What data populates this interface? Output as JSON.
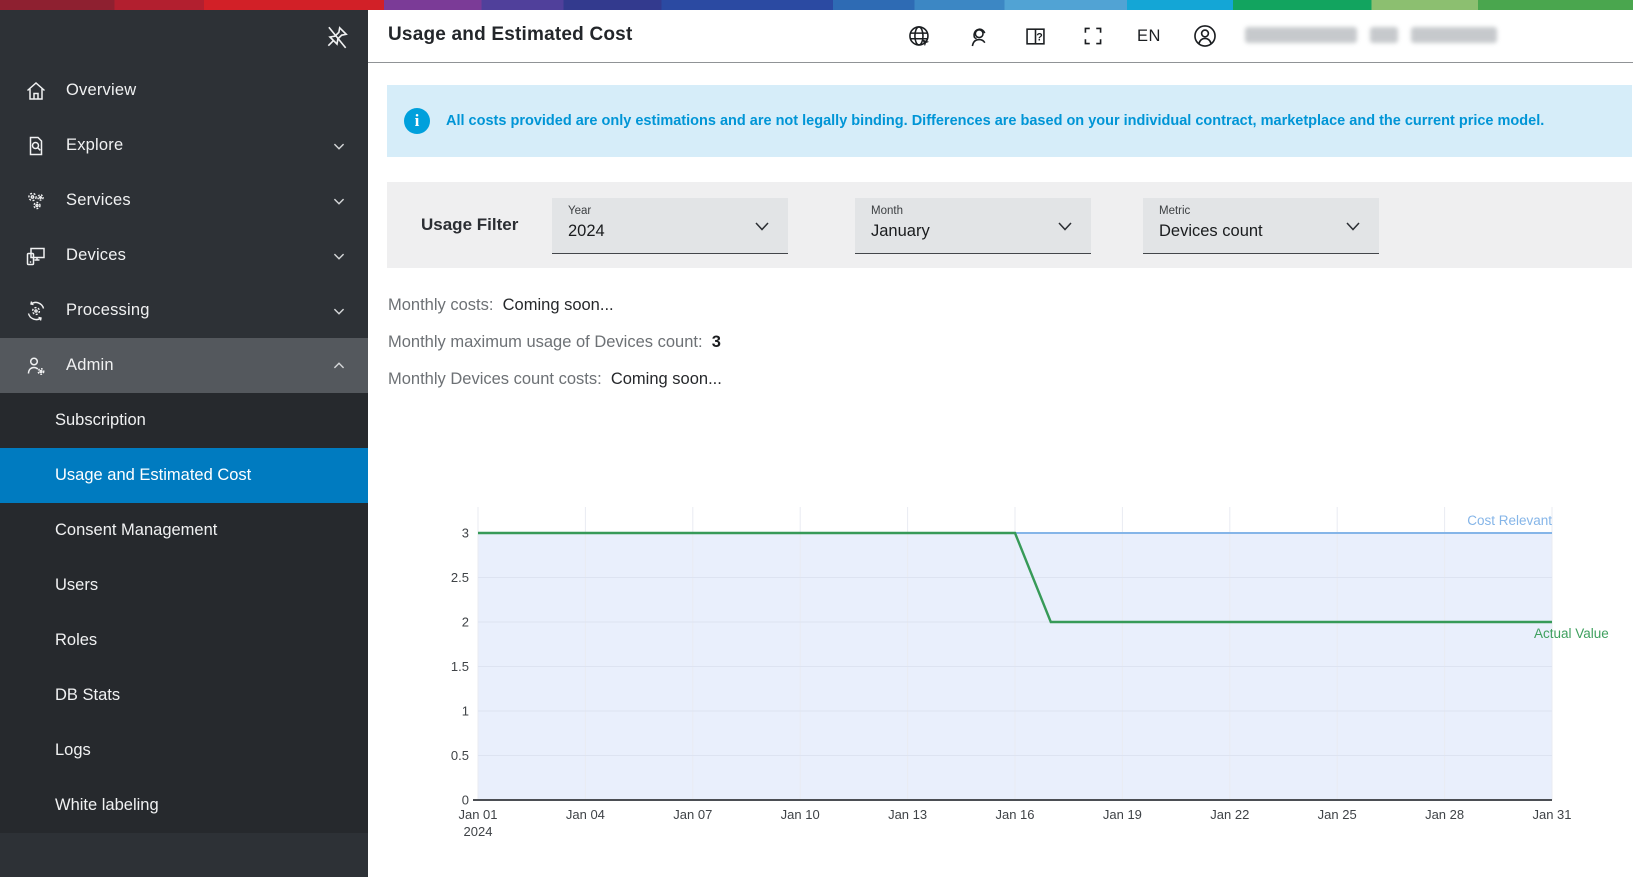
{
  "sidebar": {
    "pin_icon": "unpin",
    "items": [
      {
        "label": "Overview",
        "icon": "home",
        "expandable": false
      },
      {
        "label": "Explore",
        "icon": "document-search",
        "expandable": true
      },
      {
        "label": "Services",
        "icon": "gears",
        "expandable": true
      },
      {
        "label": "Devices",
        "icon": "devices",
        "expandable": true
      },
      {
        "label": "Processing",
        "icon": "gear-sync",
        "expandable": true
      },
      {
        "label": "Admin",
        "icon": "user-gear",
        "expandable": true,
        "expanded": true
      }
    ],
    "admin_subitems": [
      {
        "label": "Subscription"
      },
      {
        "label": "Usage and Estimated Cost",
        "selected": true
      },
      {
        "label": "Consent Management"
      },
      {
        "label": "Users"
      },
      {
        "label": "Roles"
      },
      {
        "label": "DB Stats"
      },
      {
        "label": "Logs"
      },
      {
        "label": "White labeling"
      }
    ],
    "selected_color": "#007bc0"
  },
  "header": {
    "title": "Usage and Estimated Cost",
    "language": "EN",
    "icons": [
      "web-globe-cursor",
      "support-headset",
      "manual-question",
      "fullscreen",
      "language",
      "account"
    ]
  },
  "info_banner": {
    "icon": "info-circle",
    "text": "All costs provided are only estimations and are not legally binding. Differences are based on your individual contract, marketplace and the current price model.",
    "text_color": "#0095d6",
    "background": "#d6edf9"
  },
  "usage_filter": {
    "label": "Usage Filter",
    "dropdowns": [
      {
        "label": "Year",
        "value": "2024"
      },
      {
        "label": "Month",
        "value": "January"
      },
      {
        "label": "Metric",
        "value": "Devices count"
      }
    ]
  },
  "summary": {
    "monthly_costs_label": "Monthly costs:",
    "monthly_costs_value": "Coming soon...",
    "max_usage_label": "Monthly maximum usage of Devices count:",
    "max_usage_value": "3",
    "metric_costs_label": "Monthly Devices count costs:",
    "metric_costs_value": "Coming soon..."
  },
  "chart_data": {
    "type": "line",
    "x_days": [
      1,
      2,
      3,
      4,
      5,
      6,
      7,
      8,
      9,
      10,
      11,
      12,
      13,
      14,
      15,
      16,
      17,
      18,
      19,
      20,
      21,
      22,
      23,
      24,
      25,
      26,
      27,
      28,
      29,
      30,
      31
    ],
    "x_tick_days": [
      1,
      4,
      7,
      10,
      13,
      16,
      19,
      22,
      25,
      28,
      31
    ],
    "x_tick_labels": [
      "Jan 01",
      "Jan 04",
      "Jan 07",
      "Jan 10",
      "Jan 13",
      "Jan 16",
      "Jan 19",
      "Jan 22",
      "Jan 25",
      "Jan 28",
      "Jan 31"
    ],
    "x_first_tick_sub_label": "2024",
    "ylim": [
      0,
      3
    ],
    "y_ticks": [
      0,
      0.5,
      1,
      1.5,
      2,
      2.5,
      3
    ],
    "grid": true,
    "legend_position": "right-inline",
    "series": [
      {
        "name": "Cost Relevant",
        "color": "#85b5e8",
        "label_color": "#85b5e8",
        "area_fill": "#e9effc",
        "values": [
          3,
          3,
          3,
          3,
          3,
          3,
          3,
          3,
          3,
          3,
          3,
          3,
          3,
          3,
          3,
          3,
          3,
          3,
          3,
          3,
          3,
          3,
          3,
          3,
          3,
          3,
          3,
          3,
          3,
          3,
          3
        ]
      },
      {
        "name": "Actual Value",
        "color": "#379a58",
        "label_color": "#3fa05f",
        "area_fill": null,
        "values": [
          3,
          3,
          3,
          3,
          3,
          3,
          3,
          3,
          3,
          3,
          3,
          3,
          3,
          3,
          3,
          3,
          2,
          2,
          2,
          2,
          2,
          2,
          2,
          2,
          2,
          2,
          2,
          2,
          2,
          2,
          2
        ]
      }
    ]
  }
}
